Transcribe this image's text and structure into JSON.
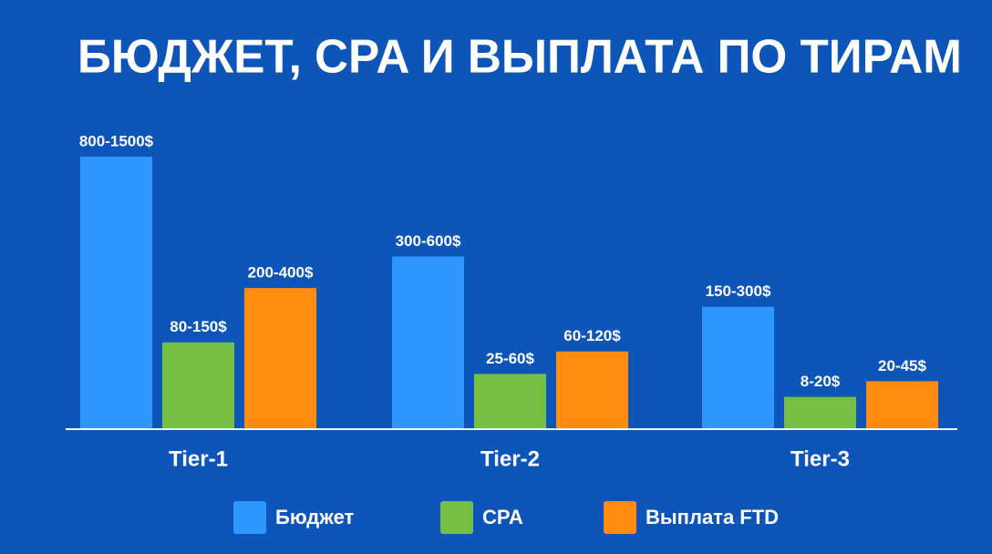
{
  "chart_data": {
    "type": "bar",
    "title": "БЮДЖЕТ, CPA И ВЫПЛАТА ПО ТИРАМ",
    "categories": [
      "Tier-1",
      "Tier-2",
      "Tier-3"
    ],
    "series": [
      {
        "name": "Бюджет",
        "color": "#2e97ff",
        "low": [
          800,
          300,
          150
        ],
        "high": [
          1500,
          600,
          300
        ],
        "value_labels": [
          "800-1500$",
          "300-600$",
          "150-300$"
        ]
      },
      {
        "name": "CPA",
        "color": "#76bf45",
        "low": [
          80,
          25,
          8
        ],
        "high": [
          150,
          60,
          20
        ],
        "value_labels": [
          "80-150$",
          "25-60$",
          "8-20$"
        ]
      },
      {
        "name": "Выплата FTD",
        "color": "#ff8c0f",
        "low": [
          200,
          60,
          20
        ],
        "high": [
          400,
          120,
          45
        ],
        "value_labels": [
          "200-400$",
          "60-120$",
          "20-45$"
        ]
      }
    ]
  }
}
